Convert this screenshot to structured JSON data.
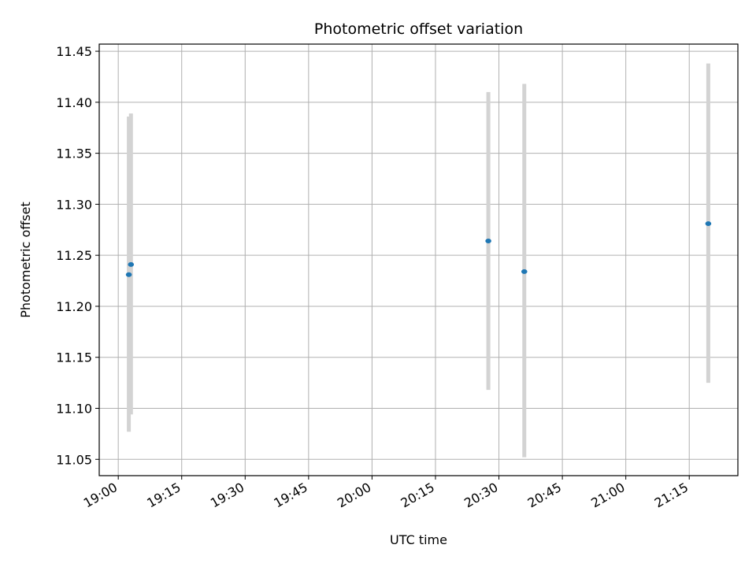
{
  "chart_data": {
    "type": "scatter",
    "title": "Photometric offset variation",
    "xlabel": "UTC time",
    "ylabel": "Photometric offset",
    "x_ticks": [
      "19:00",
      "19:15",
      "19:30",
      "19:45",
      "20:00",
      "20:15",
      "20:30",
      "20:45",
      "21:00",
      "21:15"
    ],
    "y_ticks": [
      "11.05",
      "11.10",
      "11.15",
      "11.20",
      "11.25",
      "11.30",
      "11.35",
      "11.40",
      "11.45"
    ],
    "xlim": [
      "18:55:30",
      "21:26:30"
    ],
    "ylim": [
      11.034,
      11.457
    ],
    "grid": true,
    "marker_color": "#1f77b4",
    "errorbar_color": "#d3d3d3",
    "points": [
      {
        "x": "19:02:30",
        "y": 11.231,
        "y_low": 11.077,
        "y_high": 11.386
      },
      {
        "x": "19:03:00",
        "y": 11.241,
        "y_low": 11.094,
        "y_high": 11.389
      },
      {
        "x": "20:27:30",
        "y": 11.264,
        "y_low": 11.118,
        "y_high": 11.41
      },
      {
        "x": "20:36:00",
        "y": 11.234,
        "y_low": 11.052,
        "y_high": 11.418
      },
      {
        "x": "21:19:30",
        "y": 11.281,
        "y_low": 11.125,
        "y_high": 11.438
      }
    ]
  }
}
